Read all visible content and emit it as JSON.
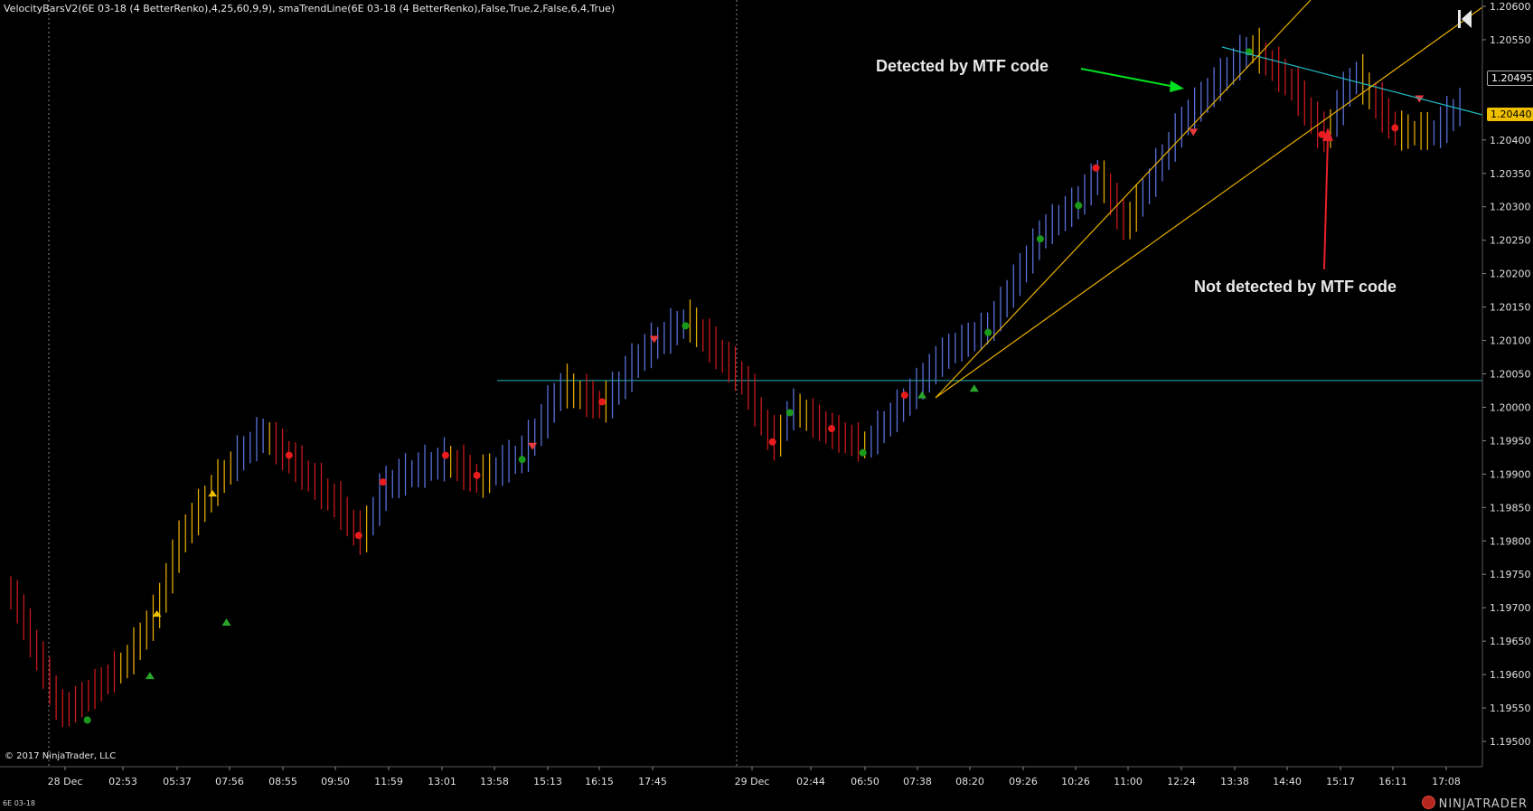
{
  "header": {
    "indicator_text": "VelocityBarsV2(6E 03-18 (4 BetterRenko),4,25,60,9,9), smaTrendLine(6E 03-18 (4 BetterRenko),False,True,2,False,6,4,True)"
  },
  "footer": {
    "copyright": "© 2017 NinjaTrader, LLC",
    "symbol": "6E 03-18",
    "brand": "NINJATRADER"
  },
  "annotations": {
    "detected": "Detected by MTF code",
    "not_detected": "Not detected by MTF code"
  },
  "price_tags": {
    "last": "1.20495",
    "marker": "1.20440"
  },
  "colors": {
    "background": "#000000",
    "bar_up": "#5a6fd8",
    "bar_down": "#c8181b",
    "bar_neutral": "#e0a800",
    "trendline": "#e8b000",
    "cyan_line": "#1fb8c0",
    "green_arrow": "#00e020",
    "red_arrow": "#e8202a",
    "marker_tag": "#f0c000"
  },
  "chart_data": {
    "type": "renko-bar",
    "ylim": [
      1.195,
      1.206
    ],
    "y_ticks": [
      "1.20600",
      "1.20550",
      "1.20495",
      "1.20450",
      "1.20400",
      "1.20350",
      "1.20300",
      "1.20250",
      "1.20200",
      "1.20150",
      "1.20100",
      "1.20050",
      "1.20000",
      "1.19950",
      "1.19900",
      "1.19850",
      "1.19800",
      "1.19750",
      "1.19700",
      "1.19650",
      "1.19600",
      "1.19550",
      "1.19500"
    ],
    "x_ticks": [
      "28 Dec",
      "02:53",
      "05:37",
      "07:56",
      "08:55",
      "09:50",
      "11:59",
      "13:01",
      "13:58",
      "15:13",
      "16:15",
      "17:45",
      "29 Dec",
      "02:44",
      "06:50",
      "07:38",
      "08:20",
      "09:26",
      "10:26",
      "11:00",
      "12:24",
      "13:38",
      "14:40",
      "15:17",
      "16:11",
      "17:08"
    ],
    "bar_count": 226,
    "path": [
      [
        0,
        1.1972
      ],
      [
        7,
        1.1963
      ],
      [
        14,
        1.1954
      ],
      [
        22,
        1.1957
      ],
      [
        33,
        1.1962
      ],
      [
        42,
        1.197
      ],
      [
        48,
        1.198
      ],
      [
        58,
        1.1988
      ],
      [
        64,
        1.1992
      ],
      [
        72,
        1.1996
      ],
      [
        80,
        1.1992
      ],
      [
        94,
        1.1985
      ],
      [
        100,
        1.198
      ],
      [
        107,
        1.1988
      ],
      [
        114,
        1.199
      ],
      [
        125,
        1.1992
      ],
      [
        134,
        1.1989
      ],
      [
        147,
        1.1993
      ],
      [
        158,
        1.2003
      ],
      [
        170,
        1.2
      ],
      [
        181,
        1.2008
      ],
      [
        194,
        1.2013
      ],
      [
        210,
        1.2004
      ],
      [
        219,
        1.1994
      ],
      [
        224,
        1.2
      ],
      [
        236,
        1.1996
      ],
      [
        245,
        1.1994
      ],
      [
        257,
        1.2001
      ],
      [
        268,
        1.2008
      ],
      [
        281,
        1.2012
      ],
      [
        296,
        1.2026
      ],
      [
        307,
        1.2031
      ],
      [
        312,
        1.2035
      ],
      [
        320,
        1.2027
      ],
      [
        337,
        1.2043
      ],
      [
        356,
        1.2054
      ],
      [
        368,
        1.2048
      ],
      [
        377,
        1.204
      ],
      [
        386,
        1.205
      ],
      [
        398,
        1.2041
      ],
      [
        409,
        1.2041
      ],
      [
        418,
        1.2046
      ]
    ],
    "x_divisions_total": 420,
    "horizontal_line": 1.2004,
    "trend_lines": [
      {
        "color": "cyan",
        "from": [
          356,
          1.2055
        ],
        "to": [
          420,
          1.2044
        ]
      },
      {
        "color": "gold",
        "from": [
          270,
          1.2001
        ],
        "to": [
          410,
          1.2065
        ]
      },
      {
        "color": "gold",
        "from": [
          270,
          1.2001
        ],
        "to": [
          420,
          1.2061
        ]
      }
    ],
    "arrows": [
      {
        "color": "green",
        "label": "Detected by MTF code",
        "from": [
          285,
          1.2049
        ],
        "to": [
          344,
          1.2046
        ]
      },
      {
        "color": "red",
        "label": "Not detected by MTF code",
        "from": [
          377,
          1.2021
        ],
        "to": [
          379,
          1.2041
        ]
      }
    ]
  }
}
